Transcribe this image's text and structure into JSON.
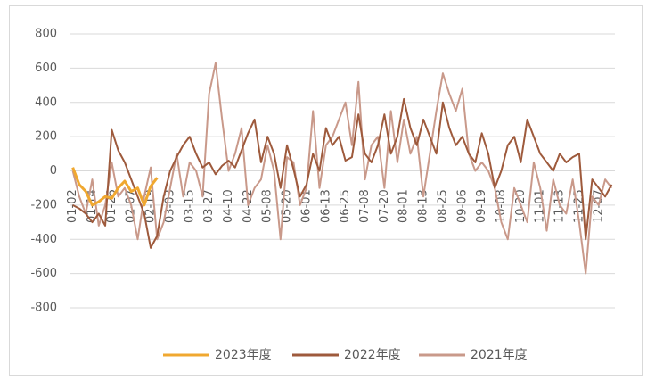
{
  "chart_data": {
    "type": "line",
    "categories": [
      "01-02",
      null,
      null,
      "01-14",
      null,
      null,
      "01-26",
      null,
      null,
      "02-07",
      null,
      null,
      "02-19",
      null,
      null,
      "03-03",
      null,
      null,
      "03-15",
      null,
      null,
      "03-27",
      null,
      null,
      "04-10",
      null,
      null,
      "04-22",
      null,
      null,
      "05-08",
      null,
      null,
      "05-20",
      null,
      null,
      "06-01",
      null,
      null,
      "06-13",
      null,
      null,
      "06-25",
      null,
      null,
      "07-08",
      null,
      null,
      "07-20",
      null,
      null,
      "08-01",
      null,
      null,
      "08-13",
      null,
      null,
      "08-25",
      null,
      null,
      "09-06",
      null,
      null,
      "09-19",
      null,
      null,
      "10-08",
      null,
      null,
      "10-20",
      null,
      null,
      "11-01",
      null,
      null,
      "11-13",
      null,
      null,
      "11-25",
      null,
      null,
      "12-07",
      null,
      null
    ],
    "series": [
      {
        "name": "2023年度",
        "color": "#f0a830",
        "values": [
          20,
          -80,
          -120,
          -200,
          -180,
          -150,
          -160,
          -100,
          -60,
          -120,
          -100,
          -200,
          -90,
          -40,
          null,
          null,
          null,
          null,
          null,
          null,
          null,
          null,
          null,
          null,
          null,
          null,
          null,
          null,
          null,
          null,
          null,
          null,
          null,
          null,
          null,
          null,
          null,
          null,
          null,
          null,
          null,
          null,
          null,
          null,
          null,
          null,
          null,
          null,
          null,
          null,
          null,
          null,
          null,
          null,
          null,
          null,
          null,
          null,
          null,
          null,
          null,
          null,
          null,
          null,
          null,
          null,
          null,
          null,
          null,
          null,
          null,
          null,
          null,
          null,
          null,
          null,
          null,
          null,
          null,
          null,
          null,
          null,
          null,
          null
        ]
      },
      {
        "name": "2022年度",
        "color": "#9e5a3c",
        "values": [
          -200,
          -220,
          -250,
          -300,
          -250,
          -320,
          240,
          120,
          50,
          -50,
          -150,
          -250,
          -450,
          -380,
          -150,
          0,
          80,
          150,
          200,
          100,
          20,
          50,
          -20,
          30,
          60,
          20,
          120,
          220,
          300,
          50,
          200,
          100,
          -100,
          150,
          10,
          -150,
          -80,
          100,
          0,
          250,
          150,
          200,
          60,
          80,
          330,
          100,
          50,
          150,
          330,
          100,
          200,
          420,
          250,
          150,
          300,
          200,
          100,
          400,
          250,
          150,
          200,
          100,
          50,
          220,
          100,
          -100,
          0,
          150,
          200,
          50,
          300,
          200,
          100,
          50,
          0,
          100,
          50,
          80,
          100,
          -400,
          -50,
          -100,
          -150,
          -80
        ]
      },
      {
        "name": "2021年度",
        "color": "#c9998a",
        "values": [
          0,
          -150,
          -250,
          -50,
          -320,
          -200,
          50,
          -150,
          -100,
          -200,
          -400,
          -150,
          20,
          -400,
          -300,
          -100,
          100,
          -150,
          50,
          0,
          -150,
          450,
          630,
          300,
          0,
          100,
          250,
          -200,
          -100,
          -50,
          150,
          0,
          -400,
          80,
          50,
          -200,
          -100,
          350,
          -100,
          150,
          200,
          300,
          400,
          150,
          520,
          -50,
          150,
          200,
          -100,
          350,
          50,
          300,
          100,
          200,
          -150,
          100,
          350,
          570,
          450,
          350,
          480,
          100,
          0,
          50,
          0,
          -100,
          -300,
          -400,
          -100,
          -200,
          -300,
          50,
          -100,
          -350,
          -50,
          -200,
          -250,
          -50,
          -300,
          -600,
          -150,
          -200,
          -50,
          -100
        ]
      }
    ],
    "ylim": [
      -800,
      800
    ],
    "yticks": [
      -800,
      -600,
      -400,
      -200,
      0,
      200,
      400,
      600,
      800
    ],
    "grid": true,
    "legend": "bottom"
  }
}
